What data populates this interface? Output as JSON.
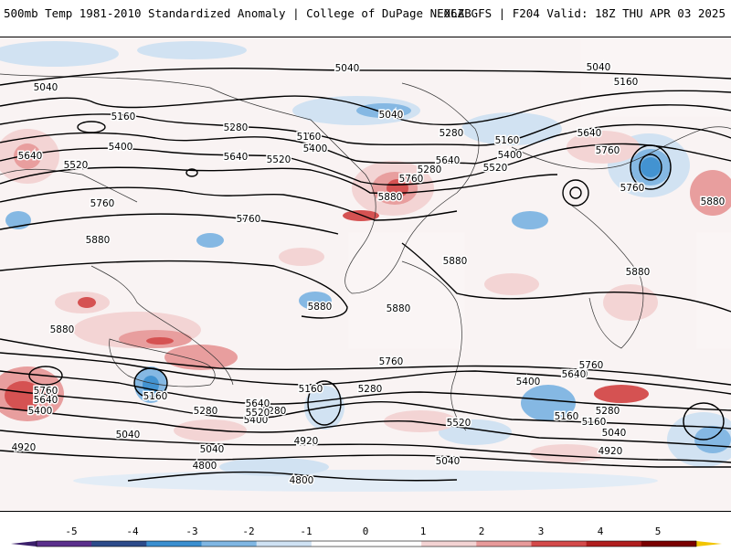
{
  "header": {
    "left_title": "500mb Temp 1981-2010 Standardized Anomaly | College of DuPage NEXLAB",
    "right_title": "06Z GFS | F204 Valid: 18Z THU APR 03 2025"
  },
  "map": {
    "field": "500mb Temp 1981-2010 Standardized Anomaly",
    "contour_labels": [
      {
        "text": "5040"
      },
      {
        "text": "5040"
      },
      {
        "text": "5040"
      },
      {
        "text": "5040"
      },
      {
        "text": "5160"
      },
      {
        "text": "5160"
      },
      {
        "text": "5160"
      },
      {
        "text": "5160"
      },
      {
        "text": "5280"
      },
      {
        "text": "5280"
      },
      {
        "text": "5280"
      },
      {
        "text": "5400"
      },
      {
        "text": "5400"
      },
      {
        "text": "5400"
      },
      {
        "text": "5520"
      },
      {
        "text": "5520"
      },
      {
        "text": "5520"
      },
      {
        "text": "5640"
      },
      {
        "text": "5640"
      },
      {
        "text": "5640"
      },
      {
        "text": "5640"
      },
      {
        "text": "5760"
      },
      {
        "text": "5760"
      },
      {
        "text": "5760"
      },
      {
        "text": "5760"
      },
      {
        "text": "5760"
      },
      {
        "text": "5880"
      },
      {
        "text": "5880"
      },
      {
        "text": "5880"
      },
      {
        "text": "5880"
      },
      {
        "text": "5880"
      },
      {
        "text": "5880"
      },
      {
        "text": "5880"
      },
      {
        "text": "5880"
      },
      {
        "text": "5760"
      },
      {
        "text": "5640"
      },
      {
        "text": "5520"
      },
      {
        "text": "5400"
      },
      {
        "text": "5280"
      },
      {
        "text": "5160"
      },
      {
        "text": "5040"
      },
      {
        "text": "4920"
      },
      {
        "text": "4800"
      },
      {
        "text": "5760"
      },
      {
        "text": "5640"
      },
      {
        "text": "5400"
      },
      {
        "text": "5160"
      },
      {
        "text": "5280"
      },
      {
        "text": "5040"
      },
      {
        "text": "4920"
      },
      {
        "text": "4800"
      },
      {
        "text": "5640"
      },
      {
        "text": "5520"
      },
      {
        "text": "5160"
      },
      {
        "text": "5280"
      },
      {
        "text": "5400"
      },
      {
        "text": "5640"
      },
      {
        "text": "5760"
      },
      {
        "text": "5280"
      },
      {
        "text": "5160"
      },
      {
        "text": "5040"
      },
      {
        "text": "4920"
      },
      {
        "text": "5040"
      }
    ],
    "colors": {
      "neg5": "#5b2f8c",
      "neg4": "#2c4b8a",
      "neg3": "#3a8fd0",
      "neg2": "#7fb6e3",
      "neg1": "#cfe2f3",
      "zero": "#ffffff",
      "pos1": "#f3d3d3",
      "pos2": "#e89a9a",
      "pos3": "#d44a4a",
      "pos4": "#b01e1e",
      "pos5": "#7a0000",
      "pos6": "#f2c500"
    }
  },
  "colorbar": {
    "ticks": [
      "-5",
      "-4",
      "-3",
      "-2",
      "-1",
      "0",
      "1",
      "2",
      "3",
      "4",
      "5"
    ]
  }
}
